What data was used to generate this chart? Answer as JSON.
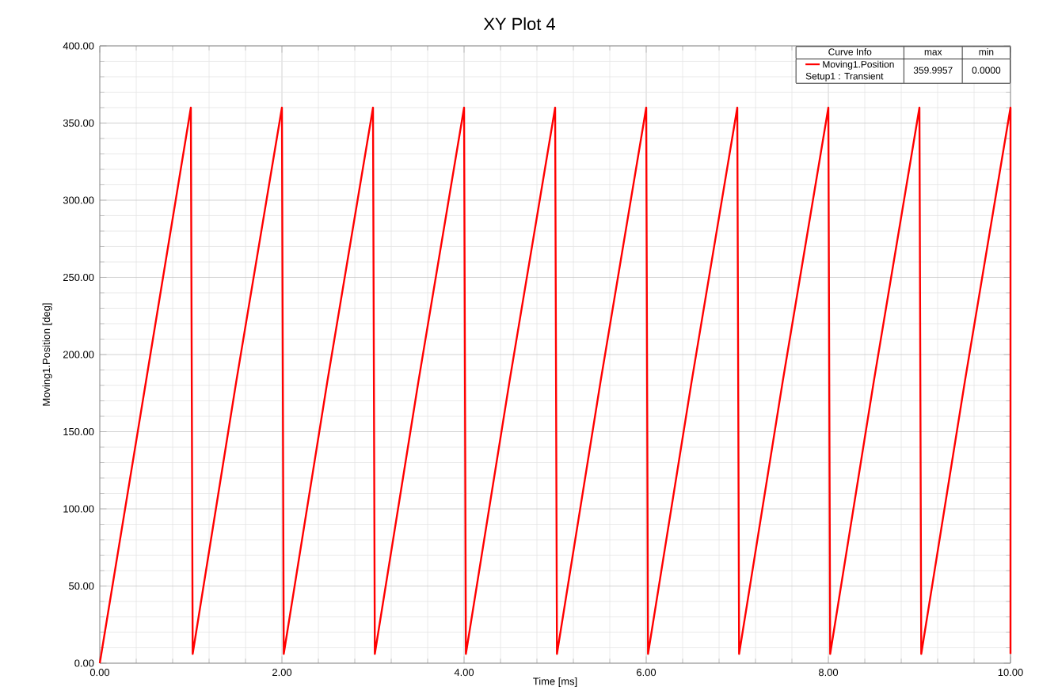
{
  "chart_data": {
    "type": "line",
    "title": "XY Plot 4",
    "xlabel": "Time [ms]",
    "ylabel": "Moving1.Position [deg]",
    "legend_title": "Curve Info",
    "annotations": [
      "Setup1 : Transient",
      "max",
      "min",
      "359.9957",
      "0.0000"
    ],
    "xlim": [
      0,
      10
    ],
    "ylim": [
      0,
      400
    ],
    "xticks": [
      {
        "value": 0,
        "label": "0.00"
      },
      {
        "value": 2,
        "label": "2.00"
      },
      {
        "value": 4,
        "label": "4.00"
      },
      {
        "value": 6,
        "label": "6.00"
      },
      {
        "value": 8,
        "label": "8.00"
      },
      {
        "value": 10,
        "label": "10.00"
      }
    ],
    "yticks": [
      {
        "value": 0,
        "label": "0.00"
      },
      {
        "value": 50,
        "label": "50.00"
      },
      {
        "value": 100,
        "label": "100.00"
      },
      {
        "value": 150,
        "label": "150.00"
      },
      {
        "value": 200,
        "label": "200.00"
      },
      {
        "value": 250,
        "label": "250.00"
      },
      {
        "value": 300,
        "label": "300.00"
      },
      {
        "value": 350,
        "label": "350.00"
      },
      {
        "value": 400,
        "label": "400.00"
      }
    ],
    "grid": true,
    "legend": "top right",
    "marker": "none",
    "line_style": "solid",
    "series": [
      {
        "name": "Moving1.Position",
        "color": "#ff0000",
        "x": [
          0,
          0.5,
          1,
          1.02,
          1.5,
          2,
          2.02,
          2.5,
          3,
          3.02,
          3.5,
          4,
          4.02,
          4.5,
          5,
          5.02,
          5.5,
          6,
          6.02,
          6.5,
          7,
          7.02,
          7.5,
          8,
          8.02,
          8.5,
          9,
          9.02,
          9.5,
          10,
          10
        ],
        "values": [
          0,
          180,
          360,
          6,
          183,
          360,
          6,
          183,
          360,
          6,
          183,
          360,
          6,
          183,
          360,
          6,
          183,
          360,
          6,
          183,
          360,
          6,
          183,
          360,
          6,
          183,
          360,
          6,
          183,
          360,
          6
        ]
      }
    ]
  }
}
